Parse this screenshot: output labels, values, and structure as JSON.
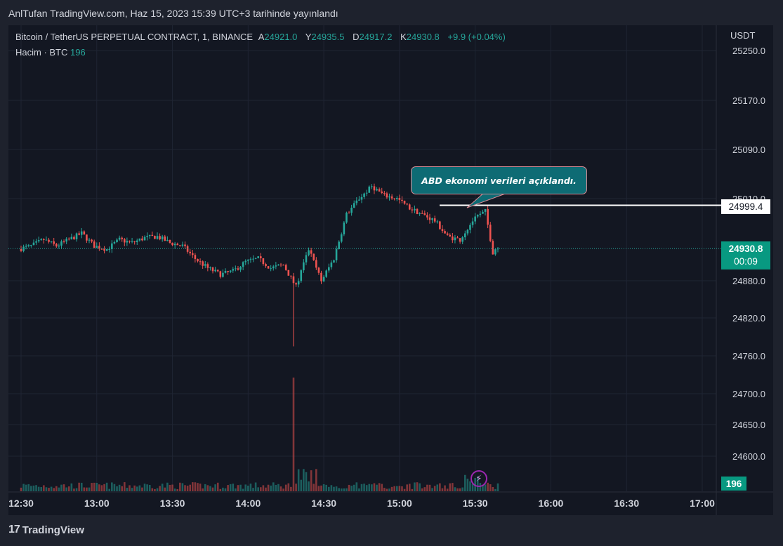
{
  "header": {
    "published": "AnlTufan TradingView.com, Haz 15, 2023 15:39 UTC+3 tarihinde yayınlandı"
  },
  "legend": {
    "symbol": "Bitcoin / TetherUS PERPETUAL CONTRACT, 1, BINANCE",
    "o_label": "A",
    "o_value": "24921.0",
    "h_label": "Y",
    "h_value": "24935.5",
    "l_label": "D",
    "l_value": "24917.2",
    "c_label": "K",
    "c_value": "24930.8",
    "change": "+9.9 (+0.04%)",
    "volume_label": "Hacim · BTC",
    "volume_value": "196"
  },
  "currency": "USDT",
  "annotation": {
    "text": "ABD ekonomi verileri açıklandı."
  },
  "horizontal_line_label": "24999.4",
  "last_price": {
    "value": "24930.8",
    "countdown": "00:09"
  },
  "volume_label": "196",
  "footer": {
    "brand": "TradingView",
    "logo": "17"
  },
  "colors": {
    "up": "#26a69a",
    "down": "#ef5350",
    "background": "#131722",
    "callout": "#0e6b74"
  },
  "chart_data": {
    "type": "candlestick",
    "symbol": "BTCUSDT.P",
    "interval": "1",
    "y_ticks": [
      25250.0,
      25170.0,
      25090.0,
      25010.0,
      24880.0,
      24820.0,
      24760.0,
      24700.0,
      24650.0,
      24600.0
    ],
    "y_tick_labels": [
      "25250.0",
      "25170.0",
      "25090.0",
      "25010.0",
      "24880.0",
      "24820.0",
      "24760.0",
      "24700.0",
      "24650.0",
      "24600.0"
    ],
    "x_ticks": [
      "12:30",
      "13:00",
      "13:30",
      "14:00",
      "14:30",
      "15:00",
      "15:30",
      "16:00",
      "16:30",
      "17:00"
    ],
    "horizontal_line": 24999.4,
    "last_close": 24930.8,
    "anchors": [
      {
        "t": "12:30",
        "p": 24930
      },
      {
        "t": "12:35",
        "p": 24935
      },
      {
        "t": "12:40",
        "p": 24945
      },
      {
        "t": "12:45",
        "p": 24935
      },
      {
        "t": "12:50",
        "p": 24945
      },
      {
        "t": "12:55",
        "p": 24955
      },
      {
        "t": "13:00",
        "p": 24935
      },
      {
        "t": "13:05",
        "p": 24930
      },
      {
        "t": "13:10",
        "p": 24945
      },
      {
        "t": "13:15",
        "p": 24940
      },
      {
        "t": "13:20",
        "p": 24948
      },
      {
        "t": "13:25",
        "p": 24950
      },
      {
        "t": "13:30",
        "p": 24940
      },
      {
        "t": "13:35",
        "p": 24935
      },
      {
        "t": "13:40",
        "p": 24915
      },
      {
        "t": "13:45",
        "p": 24900
      },
      {
        "t": "13:50",
        "p": 24890
      },
      {
        "t": "13:55",
        "p": 24895
      },
      {
        "t": "14:00",
        "p": 24910
      },
      {
        "t": "14:05",
        "p": 24915
      },
      {
        "t": "14:10",
        "p": 24900
      },
      {
        "t": "14:15",
        "p": 24905
      },
      {
        "t": "14:20",
        "p": 24870
      },
      {
        "t": "14:25",
        "p": 24930
      },
      {
        "t": "14:30",
        "p": 24880
      },
      {
        "t": "14:35",
        "p": 24915
      },
      {
        "t": "14:40",
        "p": 24985
      },
      {
        "t": "14:45",
        "p": 25010
      },
      {
        "t": "14:50",
        "p": 25030
      },
      {
        "t": "14:55",
        "p": 25015
      },
      {
        "t": "15:00",
        "p": 25010
      },
      {
        "t": "15:05",
        "p": 24995
      },
      {
        "t": "15:10",
        "p": 24985
      },
      {
        "t": "15:15",
        "p": 24975
      },
      {
        "t": "15:20",
        "p": 24950
      },
      {
        "t": "15:25",
        "p": 24945
      },
      {
        "t": "15:30",
        "p": 24975
      },
      {
        "t": "15:35",
        "p": 24990
      },
      {
        "t": "15:38",
        "p": 24925
      },
      {
        "t": "15:39",
        "p": 24930.8
      }
    ],
    "spike_low": {
      "t": "14:18",
      "low": 24775
    },
    "volume_spike": {
      "t": "14:18",
      "height_fraction": 0.9
    }
  }
}
